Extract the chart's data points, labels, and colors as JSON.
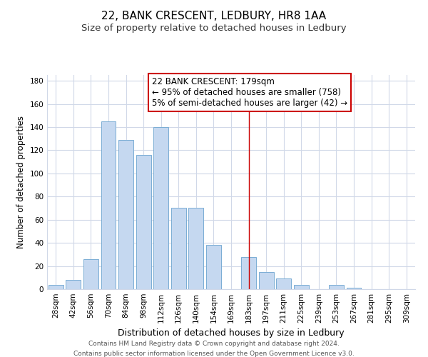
{
  "title": "22, BANK CRESCENT, LEDBURY, HR8 1AA",
  "subtitle": "Size of property relative to detached houses in Ledbury",
  "xlabel": "Distribution of detached houses by size in Ledbury",
  "ylabel": "Number of detached properties",
  "bar_labels": [
    "28sqm",
    "42sqm",
    "56sqm",
    "70sqm",
    "84sqm",
    "98sqm",
    "112sqm",
    "126sqm",
    "140sqm",
    "154sqm",
    "169sqm",
    "183sqm",
    "197sqm",
    "211sqm",
    "225sqm",
    "239sqm",
    "253sqm",
    "267sqm",
    "281sqm",
    "295sqm",
    "309sqm"
  ],
  "bar_values": [
    4,
    8,
    26,
    145,
    129,
    116,
    140,
    70,
    70,
    38,
    0,
    28,
    15,
    9,
    4,
    0,
    4,
    1,
    0,
    0,
    0
  ],
  "bar_color": "#c5d8f0",
  "bar_edge_color": "#7aadd4",
  "grid_color": "#d0d8e8",
  "vline_x_index": 11,
  "vline_color": "#cc0000",
  "annotation_text": "22 BANK CRESCENT: 179sqm\n← 95% of detached houses are smaller (758)\n5% of semi-detached houses are larger (42) →",
  "annotation_box_color": "#ffffff",
  "annotation_box_edge": "#cc0000",
  "ylim": [
    0,
    185
  ],
  "yticks": [
    0,
    20,
    40,
    60,
    80,
    100,
    120,
    140,
    160,
    180
  ],
  "footnote1": "Contains HM Land Registry data © Crown copyright and database right 2024.",
  "footnote2": "Contains public sector information licensed under the Open Government Licence v3.0.",
  "title_fontsize": 11,
  "subtitle_fontsize": 9.5,
  "xlabel_fontsize": 9,
  "ylabel_fontsize": 8.5,
  "tick_fontsize": 7.5,
  "annotation_fontsize": 8.5,
  "footnote_fontsize": 6.5
}
